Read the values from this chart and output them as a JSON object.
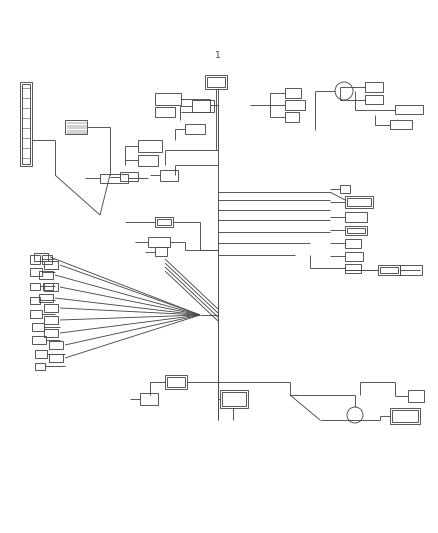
{
  "bg_color": "#ffffff",
  "wc": "#4a4a4a",
  "lw": 0.65,
  "fig_w": 4.38,
  "fig_h": 5.33,
  "dpi": 100
}
